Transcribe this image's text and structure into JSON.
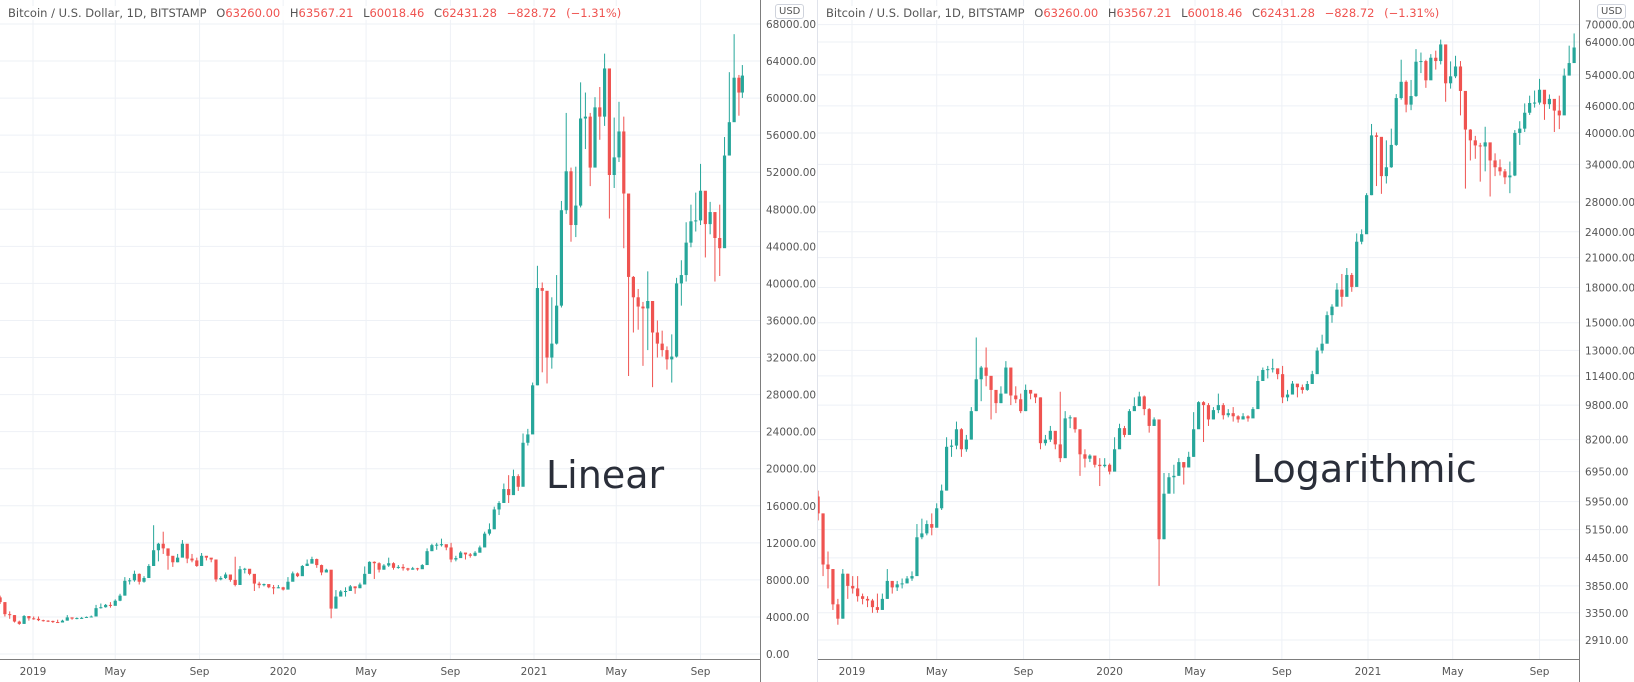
{
  "colors": {
    "up": "#26a69a",
    "down": "#ef5350",
    "grid": "#eef1f6",
    "axis": "#7d7d7d",
    "text": "#555555"
  },
  "header": {
    "symbol": "Bitcoin / U.S. Dollar, 1D, BITSTAMP",
    "open": "63260.00",
    "high": "63567.21",
    "low": "60018.46",
    "close": "62431.28",
    "change": "−828.72",
    "change_pct": "(−1.31%)",
    "o": "O",
    "h": "H",
    "l": "L",
    "c": "C"
  },
  "currency": "USD",
  "chart_data": [
    {
      "type": "candlestick",
      "title": "Linear",
      "scale": "linear",
      "ylim": [
        0,
        68000
      ],
      "yticks": [
        "0.00",
        "4000.00",
        "8000.00",
        "12000.00",
        "16000.00",
        "20000.00",
        "24000.00",
        "28000.00",
        "32000.00",
        "36000.00",
        "40000.00",
        "44000.00",
        "48000.00",
        "52000.00",
        "56000.00",
        "60000.00",
        "64000.00",
        "68000.00"
      ],
      "xticks": [
        {
          "date": "2019-01-01",
          "label": "2019"
        },
        {
          "date": "2019-05-01",
          "label": "May"
        },
        {
          "date": "2019-09-01",
          "label": "Sep"
        },
        {
          "date": "2020-01-01",
          "label": "2020"
        },
        {
          "date": "2020-05-01",
          "label": "May"
        },
        {
          "date": "2020-09-01",
          "label": "Sep"
        },
        {
          "date": "2021-01-01",
          "label": "2021"
        },
        {
          "date": "2021-05-01",
          "label": "May"
        },
        {
          "date": "2021-09-01",
          "label": "Sep"
        }
      ],
      "grid": true
    },
    {
      "type": "candlestick",
      "title": "Logarithmic",
      "scale": "log",
      "yticks": [
        "2910.00",
        "3350.00",
        "3850.00",
        "4450.00",
        "5150.00",
        "5950.00",
        "6950.00",
        "8200.00",
        "9800.00",
        "11400.00",
        "13000.00",
        "15000.00",
        "18000.00",
        "21000.00",
        "24000.00",
        "28000.00",
        "34000.00",
        "40000.00",
        "46000.00",
        "54000.00",
        "64000.00",
        "70000.00"
      ],
      "xticks": [
        {
          "date": "2019-01-01",
          "label": "2019"
        },
        {
          "date": "2019-05-01",
          "label": "May"
        },
        {
          "date": "2019-09-01",
          "label": "Sep"
        },
        {
          "date": "2020-01-01",
          "label": "2020"
        },
        {
          "date": "2020-05-01",
          "label": "May"
        },
        {
          "date": "2020-09-01",
          "label": "Sep"
        },
        {
          "date": "2021-01-01",
          "label": "2021"
        },
        {
          "date": "2021-05-01",
          "label": "May"
        },
        {
          "date": "2021-09-01",
          "label": "Sep"
        }
      ],
      "grid": true
    }
  ],
  "series": {
    "name": "Bitcoin / U.S. Dollar",
    "columns": [
      "date",
      "close",
      "low",
      "high"
    ],
    "rows": [
      [
        "2018-11-14",
        5600,
        5400,
        6300
      ],
      [
        "2018-11-21",
        4300,
        4050,
        5600
      ],
      [
        "2018-11-28",
        4200,
        3800,
        4600
      ],
      [
        "2018-12-05",
        3500,
        3400,
        4200
      ],
      [
        "2018-12-12",
        3250,
        3150,
        3600
      ],
      [
        "2018-12-19",
        4100,
        3250,
        4200
      ],
      [
        "2018-12-26",
        3850,
        3600,
        4100
      ],
      [
        "2019-01-02",
        3800,
        3700,
        4050
      ],
      [
        "2019-01-09",
        3650,
        3550,
        4050
      ],
      [
        "2019-01-16",
        3600,
        3500,
        3700
      ],
      [
        "2019-01-23",
        3570,
        3450,
        3650
      ],
      [
        "2019-01-30",
        3450,
        3350,
        3600
      ],
      [
        "2019-02-06",
        3400,
        3350,
        3700
      ],
      [
        "2019-02-13",
        3600,
        3550,
        3700
      ],
      [
        "2019-02-20",
        3950,
        3600,
        4200
      ],
      [
        "2019-02-27",
        3820,
        3700,
        3950
      ],
      [
        "2019-03-06",
        3880,
        3750,
        3950
      ],
      [
        "2019-03-13",
        3900,
        3800,
        4000
      ],
      [
        "2019-03-20",
        4000,
        3900,
        4050
      ],
      [
        "2019-03-27",
        4050,
        3950,
        4150
      ],
      [
        "2019-04-03",
        4950,
        4100,
        5300
      ],
      [
        "2019-04-10",
        5050,
        4900,
        5450
      ],
      [
        "2019-04-17",
        5300,
        5000,
        5400
      ],
      [
        "2019-04-24",
        5200,
        5000,
        5600
      ],
      [
        "2019-05-01",
        5750,
        5250,
        5900
      ],
      [
        "2019-05-08",
        6300,
        5700,
        6500
      ],
      [
        "2019-05-15",
        7900,
        6300,
        8300
      ],
      [
        "2019-05-22",
        7950,
        7500,
        8200
      ],
      [
        "2019-05-29",
        8650,
        7800,
        9000
      ],
      [
        "2019-06-05",
        7800,
        7500,
        8700
      ],
      [
        "2019-06-12",
        8200,
        7700,
        8400
      ],
      [
        "2019-06-19",
        9500,
        8200,
        9700
      ],
      [
        "2019-06-26",
        11200,
        9500,
        13900
      ],
      [
        "2019-07-03",
        11900,
        10000,
        12000
      ],
      [
        "2019-07-10",
        11400,
        10800,
        13200
      ],
      [
        "2019-07-17",
        10600,
        9100,
        11000
      ],
      [
        "2019-07-24",
        9900,
        9400,
        10200
      ],
      [
        "2019-07-31",
        10400,
        9900,
        10800
      ],
      [
        "2019-08-07",
        11900,
        10900,
        12300
      ],
      [
        "2019-08-14",
        10300,
        9800,
        11500
      ],
      [
        "2019-08-21",
        10100,
        9900,
        10800
      ],
      [
        "2019-08-28",
        9500,
        9400,
        10400
      ],
      [
        "2019-09-04",
        10600,
        9500,
        10900
      ],
      [
        "2019-09-11",
        10400,
        10100,
        10500
      ],
      [
        "2019-09-18",
        10200,
        9900,
        10300
      ],
      [
        "2019-09-25",
        8050,
        7800,
        10200
      ],
      [
        "2019-10-02",
        8200,
        7950,
        8400
      ],
      [
        "2019-10-09",
        8580,
        8100,
        8800
      ],
      [
        "2019-10-16",
        8000,
        7800,
        8400
      ],
      [
        "2019-10-23",
        7450,
        7300,
        10500
      ],
      [
        "2019-10-30",
        9150,
        8900,
        9500
      ],
      [
        "2019-11-06",
        9200,
        8700,
        9300
      ],
      [
        "2019-11-13",
        8650,
        8500,
        8900
      ],
      [
        "2019-11-20",
        7600,
        6800,
        8200
      ],
      [
        "2019-11-27",
        7430,
        7100,
        7800
      ],
      [
        "2019-12-04",
        7550,
        7300,
        7600
      ],
      [
        "2019-12-11",
        7200,
        7100,
        7450
      ],
      [
        "2019-12-18",
        7150,
        6450,
        7450
      ],
      [
        "2019-12-25",
        7200,
        7100,
        7450
      ],
      [
        "2020-01-01",
        6950,
        6850,
        7250
      ],
      [
        "2020-01-08",
        7800,
        7150,
        8300
      ],
      [
        "2020-01-15",
        8700,
        8200,
        8900
      ],
      [
        "2020-01-22",
        8400,
        8300,
        8800
      ],
      [
        "2020-01-29",
        9500,
        9200,
        9600
      ],
      [
        "2020-02-05",
        9750,
        9600,
        10200
      ],
      [
        "2020-02-12",
        10250,
        10000,
        10500
      ],
      [
        "2020-02-19",
        9600,
        9300,
        10300
      ],
      [
        "2020-02-26",
        8800,
        8500,
        9650
      ],
      [
        "2020-03-04",
        9100,
        8800,
        9200
      ],
      [
        "2020-03-11",
        4900,
        3850,
        9000
      ],
      [
        "2020-03-18",
        6200,
        4900,
        6900
      ],
      [
        "2020-03-25",
        6750,
        6400,
        6900
      ],
      [
        "2020-04-01",
        6800,
        6200,
        7200
      ],
      [
        "2020-04-08",
        7300,
        6800,
        7450
      ],
      [
        "2020-04-15",
        7100,
        6500,
        7300
      ],
      [
        "2020-04-22",
        7500,
        7100,
        7700
      ],
      [
        "2020-04-29",
        8650,
        7500,
        9450
      ],
      [
        "2020-05-06",
        9950,
        9000,
        10000
      ],
      [
        "2020-05-13",
        9800,
        8100,
        10000
      ],
      [
        "2020-05-20",
        9100,
        8800,
        9900
      ],
      [
        "2020-05-27",
        9550,
        9100,
        9700
      ],
      [
        "2020-06-03",
        9800,
        9400,
        10400
      ],
      [
        "2020-06-10",
        9300,
        9100,
        9900
      ],
      [
        "2020-06-17",
        9400,
        9200,
        9600
      ],
      [
        "2020-06-24",
        9250,
        9000,
        9700
      ],
      [
        "2020-07-01",
        9100,
        8950,
        9300
      ],
      [
        "2020-07-08",
        9250,
        9100,
        9400
      ],
      [
        "2020-07-15",
        9150,
        9000,
        9300
      ],
      [
        "2020-07-22",
        9600,
        9300,
        9700
      ],
      [
        "2020-07-29",
        11100,
        9700,
        11400
      ],
      [
        "2020-08-05",
        11750,
        11100,
        11900
      ],
      [
        "2020-08-12",
        11800,
        11250,
        12000
      ],
      [
        "2020-08-19",
        11850,
        11600,
        12450
      ],
      [
        "2020-08-26",
        11500,
        11200,
        11800
      ],
      [
        "2020-09-02",
        10200,
        9900,
        12000
      ],
      [
        "2020-09-09",
        10350,
        10000,
        10600
      ],
      [
        "2020-09-16",
        10950,
        10600,
        11100
      ],
      [
        "2020-09-23",
        10750,
        10200,
        10800
      ],
      [
        "2020-09-30",
        10600,
        10400,
        10900
      ],
      [
        "2020-10-07",
        10930,
        10550,
        11100
      ],
      [
        "2020-10-14",
        11500,
        11200,
        11700
      ],
      [
        "2020-10-21",
        12990,
        11800,
        13200
      ],
      [
        "2020-10-28",
        13460,
        12800,
        14100
      ],
      [
        "2020-11-04",
        15600,
        13500,
        15900
      ],
      [
        "2020-11-11",
        16300,
        15000,
        16500
      ],
      [
        "2020-11-18",
        17800,
        16500,
        18400
      ],
      [
        "2020-11-25",
        17150,
        16300,
        19300
      ],
      [
        "2020-12-02",
        19200,
        18000,
        19900
      ],
      [
        "2020-12-09",
        18050,
        17600,
        19400
      ],
      [
        "2020-12-16",
        22800,
        19200,
        23800
      ],
      [
        "2020-12-23",
        23700,
        22500,
        24300
      ],
      [
        "2020-12-30",
        29000,
        27000,
        29300
      ],
      [
        "2021-01-06",
        39500,
        29000,
        41900
      ],
      [
        "2021-01-13",
        39200,
        30400,
        40100
      ],
      [
        "2021-01-20",
        32000,
        29200,
        37800
      ],
      [
        "2021-01-27",
        33500,
        30800,
        38500
      ],
      [
        "2021-02-03",
        37600,
        33400,
        40900
      ],
      [
        "2021-02-10",
        47900,
        37400,
        48900
      ],
      [
        "2021-02-17",
        52100,
        47500,
        58400
      ],
      [
        "2021-02-24",
        46300,
        44500,
        52500
      ],
      [
        "2021-03-03",
        48400,
        45000,
        52600
      ],
      [
        "2021-03-10",
        57800,
        48200,
        61700
      ],
      [
        "2021-03-17",
        58000,
        54500,
        60600
      ],
      [
        "2021-03-24",
        52500,
        50500,
        58400
      ],
      [
        "2021-03-31",
        59000,
        52600,
        60100
      ],
      [
        "2021-04-07",
        58000,
        55500,
        61200
      ],
      [
        "2021-04-14",
        63200,
        57000,
        64800
      ],
      [
        "2021-04-21",
        51700,
        47000,
        56500
      ],
      [
        "2021-04-28",
        53600,
        50300,
        57900
      ],
      [
        "2021-05-05",
        56400,
        53100,
        59600
      ],
      [
        "2021-05-12",
        49700,
        43800,
        58000
      ],
      [
        "2021-05-19",
        40700,
        30000,
        45800
      ],
      [
        "2021-05-26",
        38500,
        34700,
        40800
      ],
      [
        "2021-06-02",
        37500,
        35000,
        39400
      ],
      [
        "2021-06-09",
        37300,
        31100,
        38000
      ],
      [
        "2021-06-16",
        38100,
        32800,
        41300
      ],
      [
        "2021-06-23",
        34700,
        28800,
        35600
      ],
      [
        "2021-06-30",
        33500,
        32000,
        36000
      ],
      [
        "2021-07-07",
        32800,
        32100,
        34900
      ],
      [
        "2021-07-14",
        31800,
        30700,
        33200
      ],
      [
        "2021-07-21",
        32100,
        29300,
        34500
      ],
      [
        "2021-07-28",
        40000,
        32000,
        40600
      ],
      [
        "2021-08-04",
        40900,
        37600,
        42500
      ],
      [
        "2021-08-11",
        44400,
        40200,
        46600
      ],
      [
        "2021-08-18",
        46700,
        43900,
        48500
      ],
      [
        "2021-08-25",
        46800,
        45600,
        49800
      ],
      [
        "2021-09-01",
        50000,
        46300,
        52900
      ],
      [
        "2021-09-08",
        46400,
        42800,
        47300
      ],
      [
        "2021-09-15",
        47700,
        45300,
        48800
      ],
      [
        "2021-09-22",
        44900,
        40200,
        45400
      ],
      [
        "2021-09-29",
        43800,
        40800,
        48500
      ],
      [
        "2021-10-06",
        53800,
        47800,
        55800
      ],
      [
        "2021-10-13",
        57400,
        54500,
        62800
      ],
      [
        "2021-10-20",
        62200,
        60800,
        66900
      ],
      [
        "2021-10-27",
        60600,
        58100,
        62500
      ],
      [
        "2021-11-01",
        62431,
        60018,
        63567
      ]
    ]
  }
}
